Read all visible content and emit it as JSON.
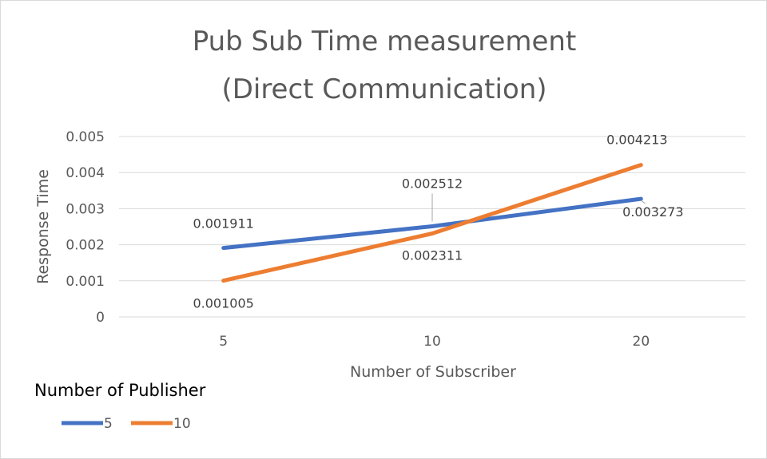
{
  "chart_data": {
    "type": "line",
    "title_lines": [
      "Pub Sub Time measurement",
      "(Direct Communication)"
    ],
    "xlabel": "Number of Subscriber",
    "ylabel": "Response Time",
    "categories": [
      "5",
      "10",
      "20"
    ],
    "ylim": [
      0,
      0.005
    ],
    "yticks": [
      "0",
      "0.001",
      "0.002",
      "0.003",
      "0.004",
      "0.005"
    ],
    "grid": true,
    "legend": {
      "title": "Number of Publisher",
      "placement": "bottom-left"
    },
    "series": [
      {
        "name": "5",
        "color": "#4472c4",
        "values": [
          0.001911,
          0.002512,
          0.003273
        ],
        "labels": [
          "0.001911",
          "0.002512",
          "0.003273"
        ]
      },
      {
        "name": "10",
        "color": "#ed7d31",
        "values": [
          0.001005,
          0.002311,
          0.004213
        ],
        "labels": [
          "0.001005",
          "0.002311",
          "0.004213"
        ]
      }
    ]
  }
}
